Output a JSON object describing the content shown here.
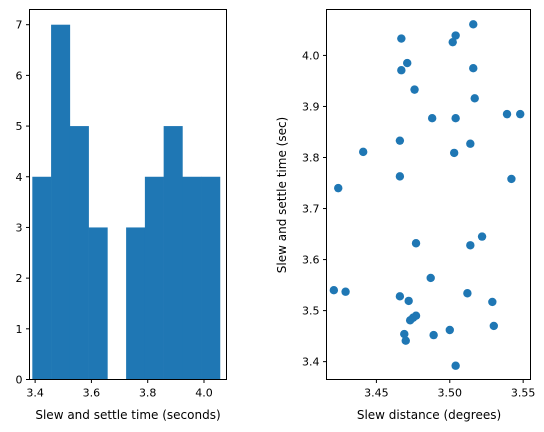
{
  "chart_data": [
    {
      "type": "bar",
      "subtype": "histogram",
      "xlabel": "Slew and settle time (seconds)",
      "ylabel": "",
      "xlim": [
        3.38,
        4.08
      ],
      "ylim": [
        0,
        7.3
      ],
      "xticks": [
        "3.4",
        "3.6",
        "3.8",
        "4.0"
      ],
      "yticks": [
        "0",
        "1",
        "2",
        "3",
        "4",
        "5",
        "6",
        "7"
      ],
      "bin_edges": [
        3.39,
        3.4567,
        3.5233,
        3.59,
        3.6567,
        3.7233,
        3.79,
        3.8567,
        3.9233,
        3.99,
        4.0567
      ],
      "values": [
        4,
        7,
        5,
        3,
        0,
        3,
        4,
        5,
        4,
        4
      ],
      "color": "#1f77b4",
      "grid": false
    },
    {
      "type": "scatter",
      "xlabel": "Slew distance (degrees)",
      "ylabel": "Slew and settle time (sec)",
      "xlim": [
        3.416,
        3.555
      ],
      "ylim": [
        3.365,
        4.09
      ],
      "xticks": [
        "3.45",
        "3.50",
        "3.55"
      ],
      "yticks": [
        "3.4",
        "3.5",
        "3.6",
        "3.7",
        "3.8",
        "3.9",
        "4.0"
      ],
      "color": "#1f77b4",
      "grid": false,
      "points": [
        {
          "x": 3.516,
          "y": 4.061
        },
        {
          "x": 3.504,
          "y": 4.039
        },
        {
          "x": 3.467,
          "y": 4.033
        },
        {
          "x": 3.502,
          "y": 4.026
        },
        {
          "x": 3.471,
          "y": 3.985
        },
        {
          "x": 3.516,
          "y": 3.975
        },
        {
          "x": 3.467,
          "y": 3.971
        },
        {
          "x": 3.476,
          "y": 3.933
        },
        {
          "x": 3.517,
          "y": 3.916
        },
        {
          "x": 3.539,
          "y": 3.885
        },
        {
          "x": 3.548,
          "y": 3.885
        },
        {
          "x": 3.488,
          "y": 3.877
        },
        {
          "x": 3.504,
          "y": 3.877
        },
        {
          "x": 3.466,
          "y": 3.833
        },
        {
          "x": 3.514,
          "y": 3.827
        },
        {
          "x": 3.441,
          "y": 3.811
        },
        {
          "x": 3.503,
          "y": 3.809
        },
        {
          "x": 3.466,
          "y": 3.763
        },
        {
          "x": 3.542,
          "y": 3.758
        },
        {
          "x": 3.424,
          "y": 3.74
        },
        {
          "x": 3.522,
          "y": 3.645
        },
        {
          "x": 3.477,
          "y": 3.632
        },
        {
          "x": 3.514,
          "y": 3.628
        },
        {
          "x": 3.487,
          "y": 3.564
        },
        {
          "x": 3.421,
          "y": 3.54
        },
        {
          "x": 3.429,
          "y": 3.537
        },
        {
          "x": 3.512,
          "y": 3.534
        },
        {
          "x": 3.466,
          "y": 3.528
        },
        {
          "x": 3.472,
          "y": 3.519
        },
        {
          "x": 3.529,
          "y": 3.517
        },
        {
          "x": 3.477,
          "y": 3.49
        },
        {
          "x": 3.475,
          "y": 3.486
        },
        {
          "x": 3.473,
          "y": 3.481
        },
        {
          "x": 3.53,
          "y": 3.47
        },
        {
          "x": 3.5,
          "y": 3.462
        },
        {
          "x": 3.469,
          "y": 3.454
        },
        {
          "x": 3.489,
          "y": 3.452
        },
        {
          "x": 3.47,
          "y": 3.441
        },
        {
          "x": 3.504,
          "y": 3.392
        }
      ]
    }
  ]
}
